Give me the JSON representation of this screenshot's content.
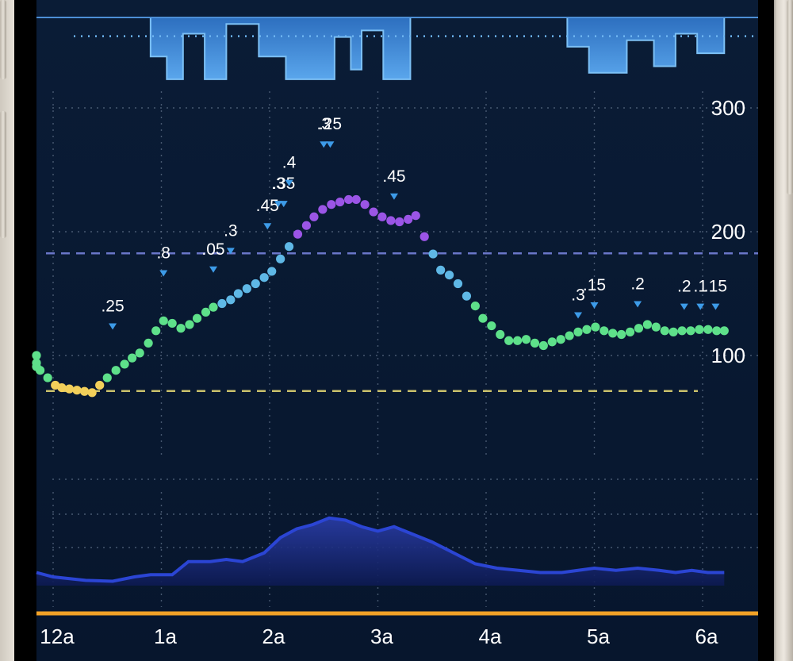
{
  "chart_data": {
    "type": "scatter",
    "title": "",
    "x_ticks": [
      "12a",
      "1a",
      "2a",
      "3a",
      "4a",
      "5a",
      "6a"
    ],
    "x_tick_hours": [
      0,
      1,
      2,
      3,
      4,
      5,
      6
    ],
    "x_range_hours": [
      -0.35,
      6.2
    ],
    "y_ticks": [
      100,
      200,
      300
    ],
    "y_range": [
      0,
      400
    ],
    "high_target": 180,
    "low_target": 70,
    "grid": true,
    "glucose_series": {
      "name": "",
      "x_hours": [
        -0.35,
        -0.28,
        -0.2,
        -0.12,
        -0.05,
        0.02,
        0.08,
        0.15,
        0.22,
        0.29,
        0.36,
        0.43,
        0.5,
        0.58,
        0.66,
        0.73,
        0.8,
        0.88,
        0.95,
        1.02,
        1.1,
        1.18,
        1.26,
        1.33,
        1.41,
        1.48,
        1.56,
        1.64,
        1.71,
        1.79,
        1.87,
        1.95,
        2.02,
        2.1,
        2.18,
        2.26,
        2.34,
        2.41,
        2.49,
        2.57,
        2.65,
        2.73,
        2.8,
        2.88,
        2.96,
        3.04,
        3.12,
        3.2,
        3.28,
        3.35,
        3.43,
        3.51,
        3.58,
        3.66,
        3.74,
        3.82,
        3.9,
        3.97,
        4.05,
        4.13,
        4.21,
        4.29,
        4.37,
        4.45,
        4.53,
        4.61,
        4.69,
        4.77,
        4.85,
        4.93,
        5.01,
        5.09,
        5.17,
        5.25,
        5.33,
        5.41,
        5.49,
        5.57,
        5.65,
        5.73,
        5.81,
        5.89,
        5.97,
        6.05,
        6.13,
        6.2
      ],
      "values": [
        100,
        94,
        91,
        88,
        82,
        76,
        74,
        73,
        72,
        71,
        70,
        76,
        82,
        88,
        93,
        98,
        102,
        110,
        120,
        128,
        126,
        122,
        125,
        130,
        135,
        139,
        142,
        145,
        150,
        154,
        158,
        163,
        168,
        178,
        188,
        198,
        205,
        212,
        218,
        222,
        224,
        226,
        226,
        222,
        216,
        212,
        209,
        208,
        210,
        213,
        196,
        182,
        169,
        165,
        158,
        148,
        140,
        130,
        124,
        117,
        112,
        112,
        113,
        110,
        108,
        111,
        113,
        116,
        119,
        121,
        123,
        120,
        118,
        117,
        119,
        122,
        125,
        123,
        120,
        119,
        120,
        120,
        121,
        121,
        120,
        120
      ],
      "color_high": "#9b55e6",
      "color_mid": "#5fb8e6",
      "color_in_range": "#5ee08a",
      "color_low": "#f2cf5a"
    },
    "basal_rate": {
      "segments": [
        {
          "start": -0.35,
          "end": 0.9,
          "level": 0.0
        },
        {
          "start": 0.9,
          "end": 1.05,
          "level": 0.6
        },
        {
          "start": 1.05,
          "end": 1.2,
          "level": 0.95
        },
        {
          "start": 1.2,
          "end": 1.4,
          "level": 0.25
        },
        {
          "start": 1.4,
          "end": 1.6,
          "level": 0.95
        },
        {
          "start": 1.6,
          "end": 1.9,
          "level": 0.1
        },
        {
          "start": 1.9,
          "end": 2.15,
          "level": 0.6
        },
        {
          "start": 2.15,
          "end": 2.6,
          "level": 0.95
        },
        {
          "start": 2.6,
          "end": 2.75,
          "level": 0.3
        },
        {
          "start": 2.75,
          "end": 2.85,
          "level": 0.8
        },
        {
          "start": 2.85,
          "end": 3.05,
          "level": 0.2
        },
        {
          "start": 3.05,
          "end": 3.3,
          "level": 0.95
        },
        {
          "start": 3.3,
          "end": 4.75,
          "level": 0.0
        },
        {
          "start": 4.75,
          "end": 4.95,
          "level": 0.45
        },
        {
          "start": 4.95,
          "end": 5.3,
          "level": 0.85
        },
        {
          "start": 5.3,
          "end": 5.55,
          "level": 0.35
        },
        {
          "start": 5.55,
          "end": 5.75,
          "level": 0.75
        },
        {
          "start": 5.75,
          "end": 5.95,
          "level": 0.25
        },
        {
          "start": 5.95,
          "end": 6.2,
          "level": 0.55
        }
      ],
      "scheduled_level": 0.3,
      "color": "#3d8fd6"
    },
    "boluses": [
      {
        "x": 0.55,
        "value": 124,
        "label": ".25"
      },
      {
        "x": 1.02,
        "value": 167,
        "label": ".8"
      },
      {
        "x": 1.48,
        "value": 170,
        "label": ".05"
      },
      {
        "x": 1.64,
        "value": 185,
        "label": ".3"
      },
      {
        "x": 1.98,
        "value": 205,
        "label": ".45"
      },
      {
        "x": 2.08,
        "value": 223,
        "label": ".3"
      },
      {
        "x": 2.13,
        "value": 223,
        "label": ".35"
      },
      {
        "x": 2.18,
        "value": 240,
        "label": ".4"
      },
      {
        "x": 2.5,
        "value": 271,
        "label": ".3"
      },
      {
        "x": 2.56,
        "value": 271,
        "label": ".25"
      },
      {
        "x": 3.15,
        "value": 229,
        "label": ".45"
      },
      {
        "x": 4.85,
        "value": 133,
        "label": ".3"
      },
      {
        "x": 5.0,
        "value": 141,
        "label": ".15"
      },
      {
        "x": 5.4,
        "value": 142,
        "label": ".2"
      },
      {
        "x": 5.83,
        "value": 140,
        "label": ".2"
      },
      {
        "x": 5.98,
        "value": 140,
        "label": ".1"
      },
      {
        "x": 6.12,
        "value": 140,
        "label": ".15"
      }
    ],
    "iob_series": {
      "x_hours": [
        -0.35,
        0,
        0.3,
        0.55,
        0.75,
        0.9,
        1.1,
        1.25,
        1.45,
        1.6,
        1.75,
        1.95,
        2.1,
        2.25,
        2.4,
        2.55,
        2.7,
        2.85,
        3.0,
        3.15,
        3.3,
        3.5,
        3.7,
        3.9,
        4.1,
        4.3,
        4.5,
        4.7,
        4.85,
        5.0,
        5.2,
        5.4,
        5.6,
        5.75,
        5.9,
        6.05,
        6.2
      ],
      "values": [
        0.3,
        0.2,
        0.12,
        0.1,
        0.2,
        0.25,
        0.25,
        0.55,
        0.55,
        0.6,
        0.55,
        0.75,
        1.1,
        1.3,
        1.4,
        1.55,
        1.5,
        1.35,
        1.25,
        1.35,
        1.2,
        1.0,
        0.75,
        0.5,
        0.4,
        0.35,
        0.3,
        0.3,
        0.35,
        0.4,
        0.35,
        0.4,
        0.35,
        0.3,
        0.35,
        0.3,
        0.3
      ],
      "y_max": 2.0,
      "color": "#2b45d4"
    },
    "colors": {
      "background": "#06172e",
      "grid": "#5d6e86",
      "high_line": "#6a76c9",
      "low_line": "#c9c06b",
      "bottom_axis": "#f2a227",
      "bolus_marker": "#3d9be8"
    }
  }
}
